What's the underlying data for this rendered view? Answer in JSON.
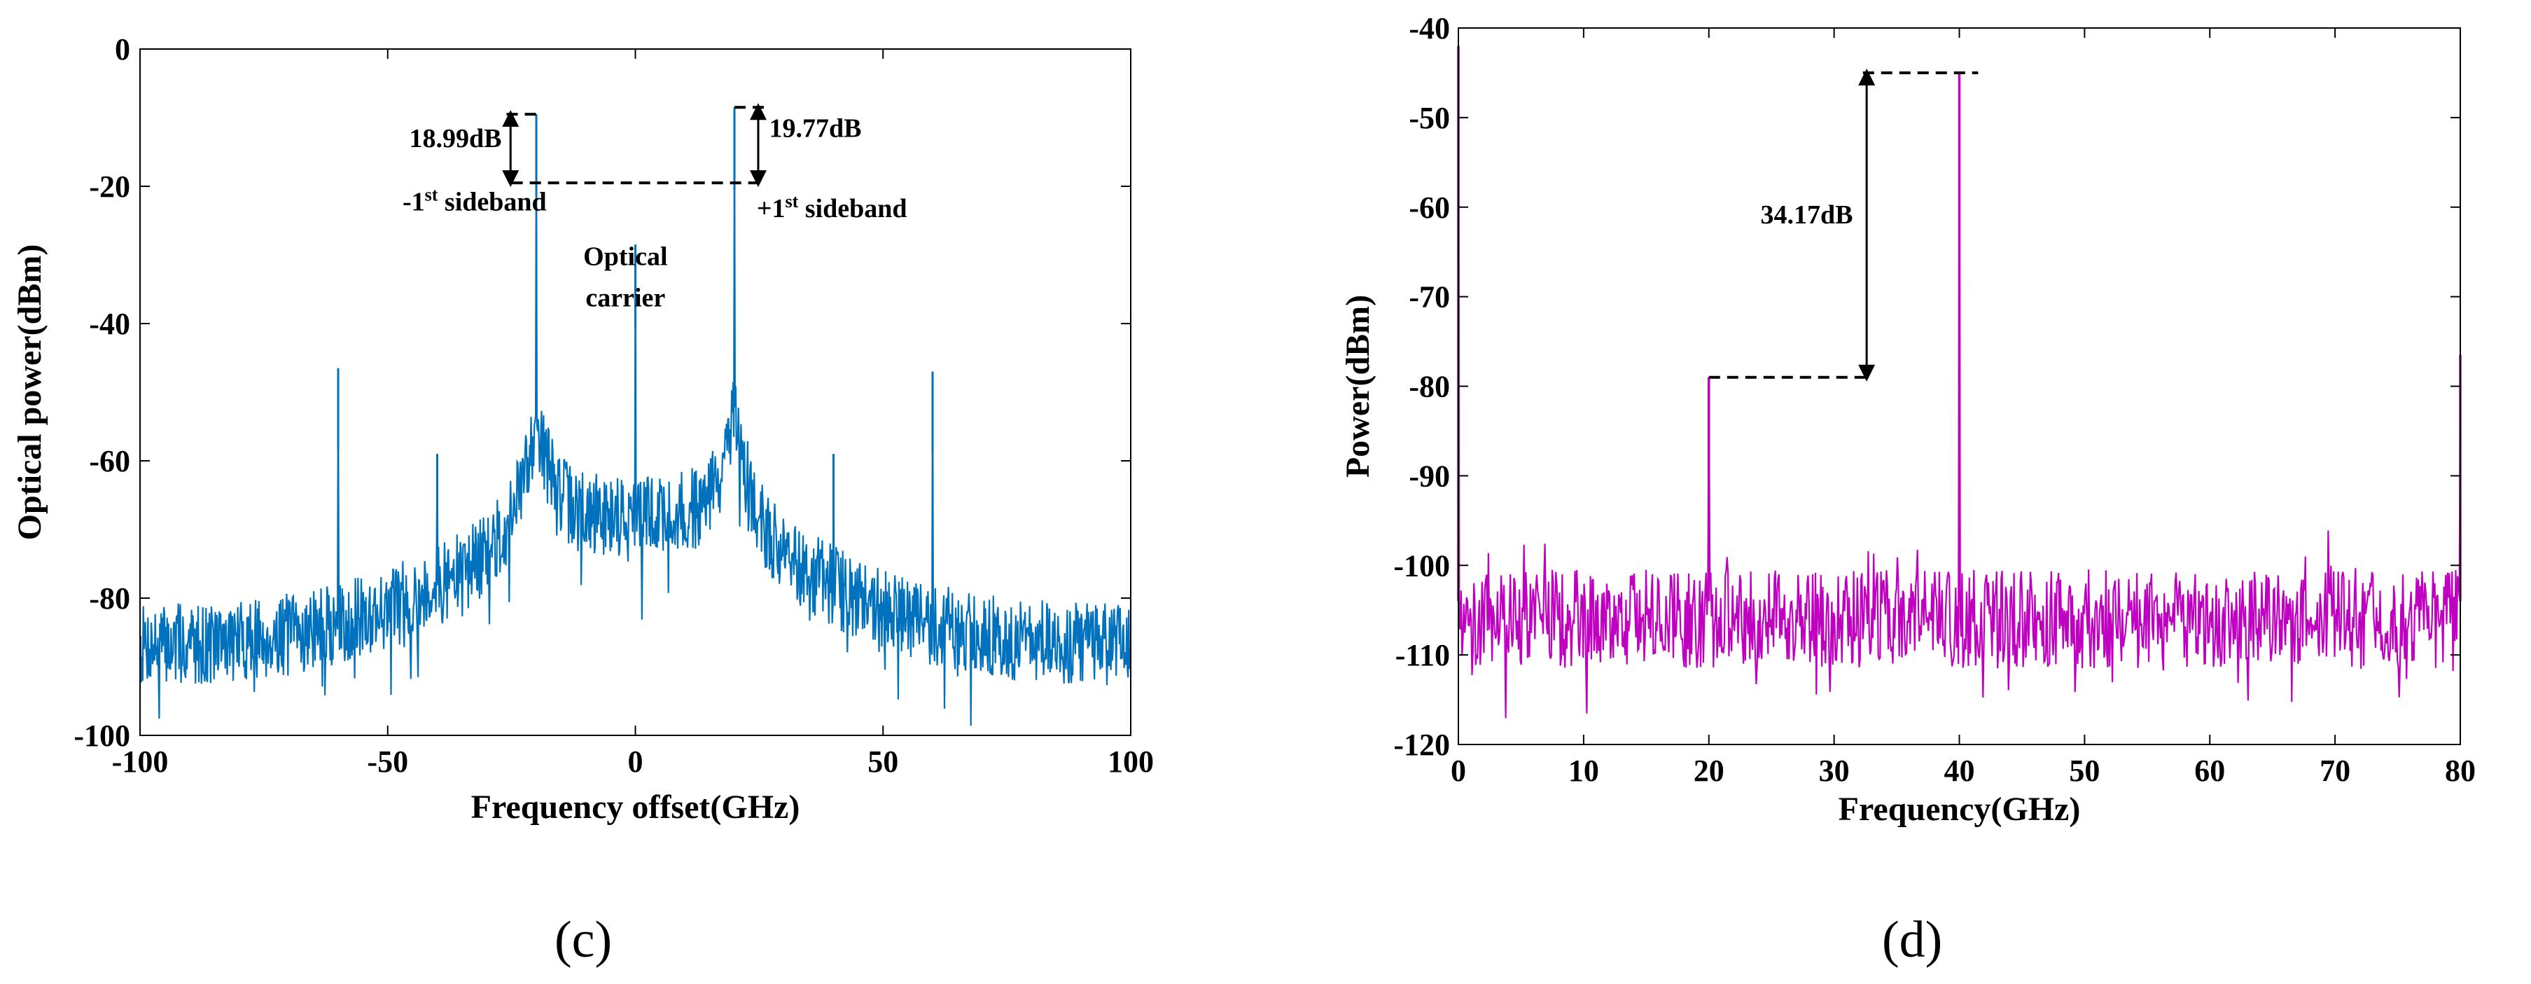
{
  "panel_c": {
    "label": "(c)"
  },
  "panel_d": {
    "label": "(d)"
  },
  "chart_data": [
    {
      "id": "c",
      "type": "line",
      "title": "",
      "xlabel": "Frequency offset(GHz)",
      "ylabel": "Optical power(dBm)",
      "xlim": [
        -100,
        100
      ],
      "ylim": [
        -100,
        0
      ],
      "xticks": [
        -100,
        -50,
        0,
        50,
        100
      ],
      "yticks": [
        0,
        -20,
        -40,
        -60,
        -80,
        -100
      ],
      "color": "#0072BD",
      "noise_floor": {
        "edges_dbm": -87,
        "center_dbm": -68
      },
      "peaks": [
        {
          "name": "-1st sideband",
          "x": -20,
          "y": -9.5
        },
        {
          "name": "+1st sideband",
          "x": 20,
          "y": -8.5
        },
        {
          "name": "optical carrier",
          "x": 0,
          "y": -28.5
        },
        {
          "name": "spur",
          "x": -60,
          "y": -46.5
        },
        {
          "name": "spur",
          "x": 60,
          "y": -47
        },
        {
          "name": "spur",
          "x": -40,
          "y": -59
        },
        {
          "name": "spur",
          "x": 40,
          "y": -59
        }
      ],
      "annotations": {
        "left_delta": "18.99dB",
        "right_delta": "19.77dB",
        "minus_first_prefix": "-1",
        "plus_first_prefix": "+1",
        "superscript": "st",
        "sideband_word": "sideband",
        "carrier_line1": "Optical",
        "carrier_line2": "carrier"
      }
    },
    {
      "id": "d",
      "type": "line",
      "title": "",
      "xlabel": "Frequency(GHz)",
      "ylabel": "Power(dBm)",
      "xlim": [
        0,
        80
      ],
      "ylim": [
        -120,
        -40
      ],
      "xticks": [
        0,
        10,
        20,
        30,
        40,
        50,
        60,
        70,
        80
      ],
      "yticks": [
        -40,
        -50,
        -60,
        -70,
        -80,
        -90,
        -100,
        -110,
        -120
      ],
      "color": "#C000C0",
      "noise_floor": {
        "mean_dbm": -106
      },
      "peaks": [
        {
          "name": "20 GHz tone",
          "x": 20,
          "y": -79
        },
        {
          "name": "40 GHz tone",
          "x": 40,
          "y": -45
        },
        {
          "name": "edge",
          "x": 0,
          "y": -42
        },
        {
          "name": "edge",
          "x": 80,
          "y": -76.5
        }
      ],
      "annotations": {
        "delta": "34.17dB"
      }
    }
  ]
}
